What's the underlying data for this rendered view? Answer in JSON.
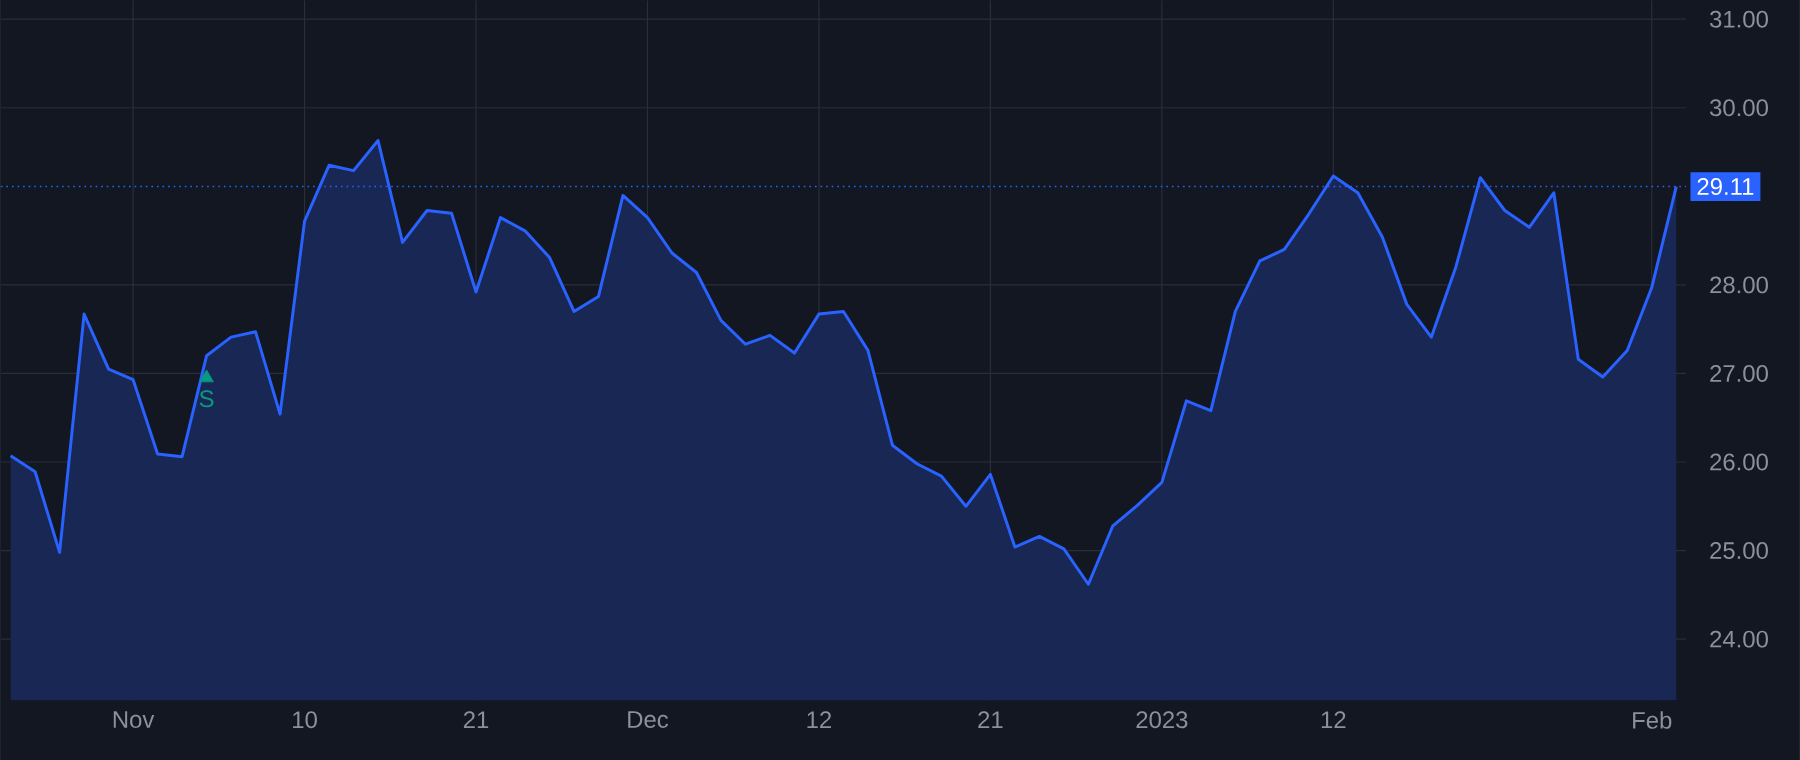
{
  "chart_data": {
    "type": "area",
    "categories": [
      null,
      null,
      null,
      null,
      null,
      "Nov",
      null,
      null,
      null,
      null,
      null,
      null,
      "10",
      null,
      null,
      null,
      null,
      null,
      null,
      "21",
      null,
      null,
      null,
      null,
      null,
      null,
      "Dec",
      null,
      null,
      null,
      null,
      null,
      null,
      "12",
      null,
      null,
      null,
      null,
      null,
      null,
      "21",
      null,
      null,
      null,
      null,
      null,
      null,
      "2023",
      null,
      null,
      null,
      null,
      null,
      null,
      "12",
      null,
      null,
      null,
      null,
      null,
      null,
      null,
      null,
      null,
      null,
      null,
      null,
      "Feb",
      null
    ],
    "series": [
      {
        "color": "#2962ff",
        "values": [
          26.07,
          25.89,
          24.98,
          27.67,
          27.05,
          26.93,
          26.09,
          26.06,
          27.2,
          27.41,
          27.47,
          26.54,
          28.72,
          29.35,
          29.29,
          29.63,
          28.48,
          28.84,
          28.81,
          27.92,
          28.76,
          28.61,
          28.31,
          27.7,
          27.87,
          29.01,
          28.76,
          28.36,
          28.14,
          27.6,
          27.33,
          27.43,
          27.23,
          27.67,
          27.7,
          27.26,
          26.19,
          25.98,
          25.84,
          25.5,
          25.86,
          25.04,
          25.16,
          25.02,
          24.62,
          25.28,
          25.51,
          25.77,
          26.69,
          26.58,
          27.7,
          28.27,
          28.4,
          28.8,
          29.23,
          29.04,
          28.54,
          27.78,
          27.41,
          28.2,
          29.21,
          28.84,
          28.65,
          29.04,
          27.16,
          26.96,
          27.26,
          27.97,
          29.11
        ]
      },
      {
        "type": "scatter",
        "marker": "triangle",
        "color": "#089981",
        "values": [
          null,
          null,
          null,
          null,
          null,
          null,
          null,
          null,
          26.95,
          null,
          null,
          null,
          null,
          null,
          null,
          null,
          null,
          null,
          null,
          null,
          null,
          null,
          null,
          null,
          null,
          null,
          null,
          null,
          null,
          null,
          null,
          null,
          null,
          null,
          null,
          null,
          null,
          null,
          null,
          null,
          null,
          null,
          null,
          null,
          null,
          null,
          null,
          null,
          null,
          null,
          null,
          null,
          null,
          null,
          null,
          null,
          null,
          null,
          null,
          null,
          null,
          null,
          null,
          null,
          null,
          null,
          null,
          null,
          null
        ],
        "value_labels": [
          null,
          null,
          null,
          null,
          null,
          null,
          null,
          null,
          "S",
          null,
          null,
          null,
          null,
          null,
          null,
          null,
          null,
          null,
          null,
          null,
          null,
          null,
          null,
          null,
          null,
          null,
          null,
          null,
          null,
          null,
          null,
          null,
          null,
          null,
          null,
          null,
          null,
          null,
          null,
          null,
          null,
          null,
          null,
          null,
          null,
          null,
          null,
          null,
          null,
          null,
          null,
          null,
          null,
          null,
          null,
          null,
          null,
          null,
          null,
          null,
          null,
          null,
          null,
          null,
          null,
          null,
          null,
          null,
          null
        ]
      }
    ],
    "ylim": [
      23.31,
      31.21
    ],
    "yticks": [
      {
        "value": 24,
        "label": "24.00"
      },
      {
        "value": 25,
        "label": "25.00"
      },
      {
        "value": 26,
        "label": "26.00"
      },
      {
        "value": 27,
        "label": "27.00"
      },
      {
        "value": 28,
        "label": "28.00"
      },
      {
        "value": 30,
        "label": "30.00"
      },
      {
        "value": 31,
        "label": "31.00"
      }
    ],
    "grid": true,
    "ref_lines": [
      {
        "axis": "y",
        "value": 29.11,
        "label": "29.11",
        "color": "#2962ff",
        "line_style": "dotted"
      }
    ]
  }
}
